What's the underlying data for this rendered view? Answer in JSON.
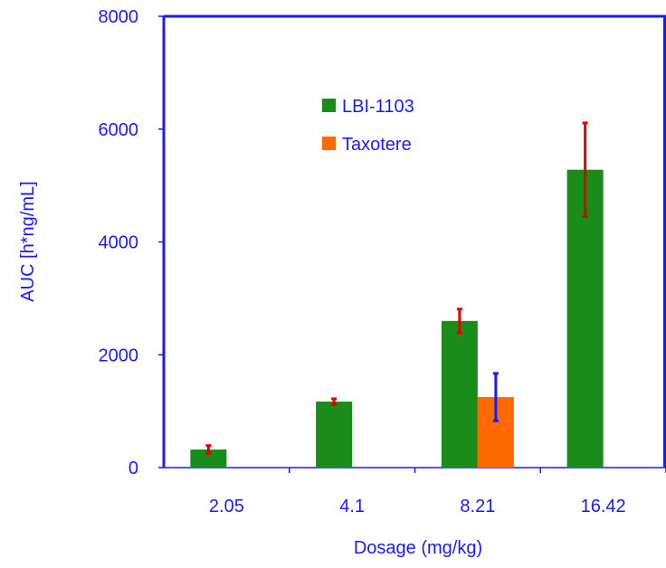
{
  "chart_data": {
    "type": "bar",
    "xlabel": "Dosage (mg/kg)",
    "ylabel": "AUC [h*ng/mL]",
    "categories": [
      "2.05",
      "4.1",
      "8.21",
      "16.42"
    ],
    "ylim": [
      0,
      8000
    ],
    "yticks": [
      "0",
      "2000",
      "4000",
      "6000",
      "8000"
    ],
    "series": [
      {
        "name": "LBI-1103",
        "color": "#1a8c1a",
        "error_color": "#e60000",
        "values": [
          320,
          1170,
          2600,
          5280
        ],
        "errors": [
          70,
          50,
          210,
          830
        ]
      },
      {
        "name": "Taxotere",
        "color": "#ff6a00",
        "error_color": "#1a1aff",
        "values": [
          null,
          null,
          1250,
          null
        ],
        "errors": [
          null,
          null,
          420,
          null
        ]
      }
    ],
    "legend_position": "top-center",
    "grid": false,
    "axis_color": "#1a1aff"
  }
}
